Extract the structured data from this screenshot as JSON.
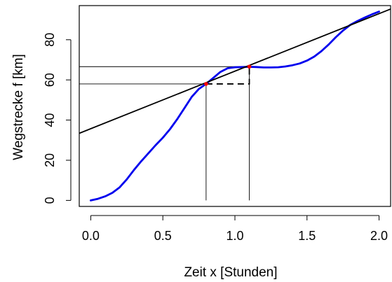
{
  "chart_data": {
    "type": "line",
    "xlabel": "Zeit x [Stunden]",
    "ylabel": "Wegstrecke f [km]",
    "xlim": [
      -0.08,
      2.08
    ],
    "ylim": [
      -3,
      97
    ],
    "x_ticks": [
      0.0,
      0.5,
      1.0,
      1.5,
      2.0
    ],
    "x_tick_labels": [
      "0.0",
      "0.5",
      "1.0",
      "1.5",
      "2.0"
    ],
    "y_ticks": [
      0,
      20,
      40,
      60,
      80
    ],
    "y_tick_labels": [
      "0",
      "20",
      "40",
      "60",
      "80"
    ],
    "grid": false,
    "series": [
      {
        "color": "#0000ee",
        "x": [
          0.0,
          0.05,
          0.1,
          0.15,
          0.2,
          0.25,
          0.3,
          0.35,
          0.4,
          0.45,
          0.5,
          0.55,
          0.6,
          0.65,
          0.7,
          0.75,
          0.8,
          0.85,
          0.9,
          0.95,
          1.0,
          1.05,
          1.1,
          1.15,
          1.2,
          1.25,
          1.3,
          1.35,
          1.4,
          1.45,
          1.5,
          1.55,
          1.6,
          1.65,
          1.7,
          1.75,
          1.8,
          1.85,
          1.9,
          1.95,
          2.0
        ],
        "y": [
          0.0,
          0.8,
          2.0,
          3.8,
          6.5,
          10.5,
          15.2,
          19.5,
          23.5,
          27.5,
          31.2,
          35.5,
          40.5,
          46.0,
          51.5,
          55.5,
          58.0,
          61.0,
          64.0,
          65.8,
          66.3,
          66.4,
          66.5,
          66.4,
          66.2,
          66.2,
          66.3,
          66.7,
          67.3,
          68.2,
          69.6,
          71.6,
          74.3,
          77.6,
          81.3,
          84.6,
          87.4,
          89.3,
          91.0,
          92.6,
          94.0
        ]
      },
      {
        "color": "#000000",
        "x": [
          -0.08,
          2.08
        ],
        "y": [
          33.4,
          95.3
        ]
      }
    ],
    "annotations": {
      "points": [
        {
          "x": 0.8,
          "y": 58.0,
          "color": "#ff0000"
        },
        {
          "x": 1.1,
          "y": 66.6,
          "color": "#ff0000"
        }
      ],
      "vertical_lines": [
        {
          "x": 0.8,
          "y_from": 0,
          "y_to": 58.0
        },
        {
          "x": 1.1,
          "y_from": 0,
          "y_to": 66.6
        }
      ],
      "horizontal_lines": [
        {
          "y": 58.0,
          "x_from": -0.08,
          "x_to": 0.8
        },
        {
          "y": 66.6,
          "x_from": -0.08,
          "x_to": 1.1
        }
      ],
      "dashed_segment": {
        "x_from": 0.8,
        "x_to": 1.1,
        "y_from": 58.0,
        "y_to": 66.6
      }
    }
  }
}
